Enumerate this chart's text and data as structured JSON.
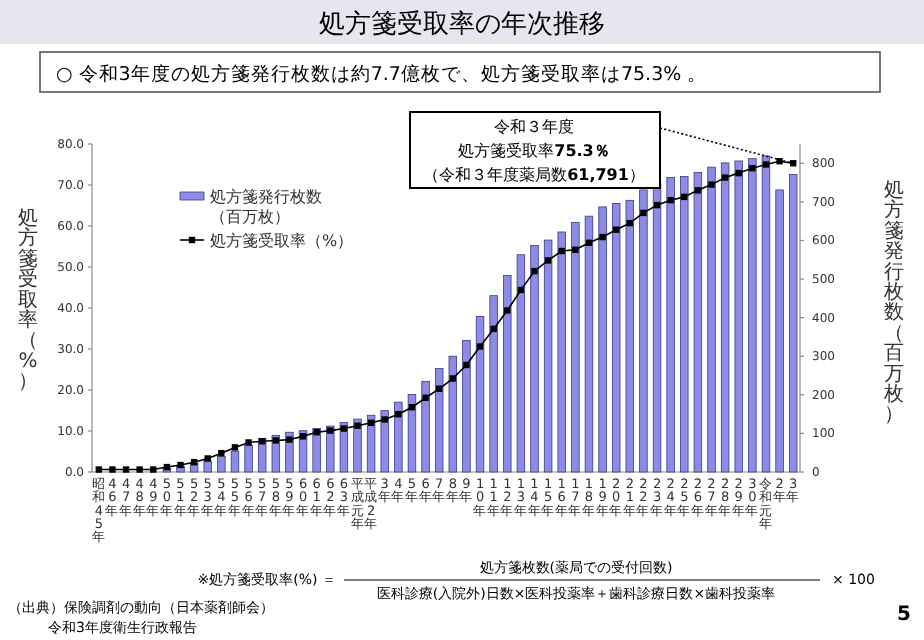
{
  "chart_data": {
    "type": "bar",
    "title": "処方箋受取率の年次推移",
    "subtitle": "○ 令和3年度の処方箋発行枚数は約7.7億枚で、処方箋受取率は75.3% 。",
    "annotations": [
      "令和３年度",
      "処方箋受取率**75.3％**",
      "（令和３年度薬局数**61,791**）",
      "（出典）保険調剤の動向（日本薬剤師会）",
      "令和3年度衛生行政報告",
      "※処方箋受取率(%) ＝",
      "処方箋枚数(薬局での受付回数)",
      "医科診療(入院外)日数×医科投薬率＋歯科診療日数×歯科投薬率",
      "× 100",
      "5"
    ],
    "categories": [
      "昭和45年",
      "46年",
      "47年",
      "48年",
      "49年",
      "50年",
      "51年",
      "52年",
      "53年",
      "54年",
      "55年",
      "56年",
      "57年",
      "58年",
      "59年",
      "60年",
      "61年",
      "62年",
      "63年",
      "平成元年",
      "平成2年",
      "3年",
      "4年",
      "5年",
      "6年",
      "7年",
      "8年",
      "9年",
      "10年",
      "11年",
      "12年",
      "13年",
      "14年",
      "15年",
      "16年",
      "17年",
      "18年",
      "19年",
      "20年",
      "21年",
      "22年",
      "23年",
      "24年",
      "25年",
      "26年",
      "27年",
      "28年",
      "29年",
      "30年",
      "令和元年",
      "2年",
      "3年"
    ],
    "ylabel": "処方箋受取率（%）",
    "y2label": "処方箋発行枚数（百万枚）",
    "ylim": [
      0,
      80
    ],
    "yticks": [
      {
        "value": 0,
        "label": "0.0"
      },
      {
        "value": 10,
        "label": "10.0"
      },
      {
        "value": 20,
        "label": "20.0"
      },
      {
        "value": 30,
        "label": "30.0"
      },
      {
        "value": 40,
        "label": "40.0"
      },
      {
        "value": 50,
        "label": "50.0"
      },
      {
        "value": 60,
        "label": "60.0"
      },
      {
        "value": 70,
        "label": "70.0"
      },
      {
        "value": 80,
        "label": "80.0"
      }
    ],
    "y2lim": [
      0,
      850
    ],
    "y2ticks": [
      0,
      100,
      200,
      300,
      400,
      500,
      600,
      700,
      800
    ],
    "legend": "top left",
    "series": [
      {
        "name": "処方箋発行枚数（百万枚）",
        "axis": "y2",
        "color": "#8c8ce6",
        "values": [
          null,
          null,
          null,
          null,
          null,
          10,
          15,
          22,
          29,
          40,
          54,
          69,
          87,
          95,
          103,
          107,
          113,
          119,
          128,
          137,
          147,
          159,
          181,
          201,
          235,
          268,
          300,
          341,
          403,
          457,
          509,
          563,
          587,
          601,
          622,
          647,
          663,
          687,
          696,
          704,
          731,
          749,
          763,
          766,
          776,
          790,
          801,
          806,
          812,
          819,
          731,
          771
        ]
      },
      {
        "name": "処方箋受取率（%）",
        "type": "line",
        "axis": "y",
        "color": "#000000",
        "marker": "square",
        "values": [
          0.6,
          0.6,
          0.6,
          0.6,
          0.6,
          1.2,
          1.7,
          2.4,
          3.3,
          4.6,
          6.0,
          7.2,
          7.5,
          7.7,
          7.9,
          8.7,
          9.7,
          10.1,
          10.6,
          11.3,
          12.0,
          12.8,
          14.1,
          15.8,
          18.1,
          20.3,
          22.8,
          26.1,
          30.6,
          34.9,
          39.4,
          44.4,
          49.0,
          51.6,
          53.9,
          54.2,
          55.9,
          57.3,
          59.1,
          60.7,
          63.2,
          65.1,
          66.3,
          67.1,
          68.7,
          70.1,
          71.8,
          72.9,
          74.1,
          75.0,
          75.8,
          75.3
        ]
      }
    ]
  }
}
